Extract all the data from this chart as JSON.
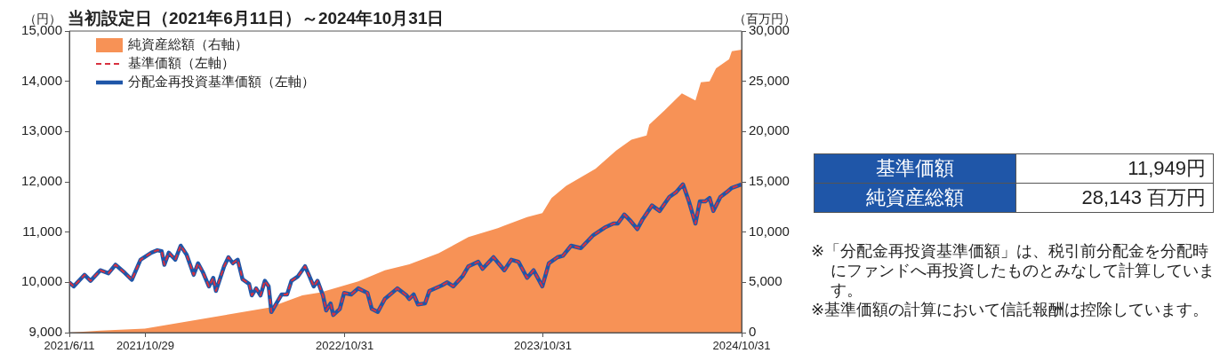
{
  "chart_data": {
    "type": "line",
    "title": "当初設定日（2021年6月11日）～2024年10月31日",
    "ylabel": "（円）",
    "y2label": "（百万円）",
    "xlim": [
      "2021-06-11",
      "2024-10-31"
    ],
    "xticks": [
      {
        "value": "2021-06-11",
        "label": "2021/6/11"
      },
      {
        "value": "2021-10-29",
        "label": "2021/10/29"
      },
      {
        "value": "2022-10-31",
        "label": "2022/10/31"
      },
      {
        "value": "2023-10-31",
        "label": "2023/10/31"
      },
      {
        "value": "2024-10-31",
        "label": "2024/10/31"
      }
    ],
    "ylim": [
      9000,
      15000
    ],
    "yticks": [
      {
        "value": 9000,
        "label": "9,000"
      },
      {
        "value": 10000,
        "label": "10,000"
      },
      {
        "value": 11000,
        "label": "11,000"
      },
      {
        "value": 12000,
        "label": "12,000"
      },
      {
        "value": 13000,
        "label": "13,000"
      },
      {
        "value": 14000,
        "label": "14,000"
      },
      {
        "value": 15000,
        "label": "15,000"
      }
    ],
    "y2lim": [
      0,
      30000
    ],
    "y2ticks": [
      0,
      {
        "value": 5000,
        "label": "5,000"
      },
      {
        "value": 10000,
        "label": "10,000"
      },
      {
        "value": 15000,
        "label": "15,000"
      },
      {
        "value": 20000,
        "label": "20,000"
      },
      {
        "value": 25000,
        "label": "25,000"
      },
      {
        "value": 30000,
        "label": "30,000"
      }
    ],
    "grid": false,
    "legend": "top left",
    "series": [
      {
        "name": "純資産総額（右軸）",
        "type": "area",
        "axis": "y2",
        "color": "#f79256",
        "x": [
          "2021-06-11",
          "2021-08-07",
          "2021-10-28",
          "2022-02-26",
          "2022-06-14",
          "2022-08-14",
          "2022-09-16",
          "2022-11-25",
          "2023-01-13",
          "2023-02-27",
          "2023-04-22",
          "2023-06-16",
          "2023-08-09",
          "2023-10-02",
          "2023-10-30",
          "2023-11-16",
          "2023-12-13",
          "2024-02-05",
          "2024-03-14",
          "2024-04-11",
          "2024-05-09",
          "2024-05-14",
          "2024-06-11",
          "2024-07-13",
          "2024-08-07",
          "2024-08-17",
          "2024-09-02",
          "2024-09-14",
          "2024-10-08",
          "2024-10-13",
          "2024-10-31"
        ],
        "values": [
          0,
          200,
          400,
          1500,
          2500,
          3700,
          4000,
          5100,
          6200,
          6800,
          7900,
          9500,
          10400,
          11500,
          11900,
          13400,
          14600,
          16300,
          18100,
          19200,
          19600,
          20700,
          22100,
          23800,
          23100,
          24900,
          25000,
          26300,
          27200,
          28000,
          28143
        ]
      },
      {
        "name": "基準価額（左軸）",
        "type": "line",
        "line_style": "dashed",
        "color": "#d8313f",
        "x": [
          "2021-06-11",
          "2021-06-19",
          "2021-07-09",
          "2021-07-20",
          "2021-08-07",
          "2021-08-22",
          "2021-09-04",
          "2021-09-21",
          "2021-10-04",
          "2021-10-20",
          "2021-11-09",
          "2021-11-20",
          "2021-11-28",
          "2021-12-03",
          "2021-12-11",
          "2021-12-23",
          "2022-01-02",
          "2022-01-13",
          "2022-01-26",
          "2022-02-03",
          "2022-02-12",
          "2022-02-23",
          "2022-03-03",
          "2022-03-08",
          "2022-03-23",
          "2022-03-31",
          "2022-04-08",
          "2022-04-17",
          "2022-04-26",
          "2022-05-08",
          "2022-05-13",
          "2022-05-21",
          "2022-05-29",
          "2022-06-06",
          "2022-06-13",
          "2022-06-18",
          "2022-06-26",
          "2022-07-07",
          "2022-07-17",
          "2022-07-25",
          "2022-08-06",
          "2022-08-19",
          "2022-08-26",
          "2022-09-04",
          "2022-09-11",
          "2022-09-21",
          "2022-09-27",
          "2022-10-05",
          "2022-10-10",
          "2022-10-22",
          "2022-10-30",
          "2022-11-12",
          "2022-11-25",
          "2022-12-12",
          "2022-12-20",
          "2022-12-31",
          "2023-01-13",
          "2023-02-05",
          "2023-02-22",
          "2023-02-27",
          "2023-03-07",
          "2023-03-15",
          "2023-03-28",
          "2023-04-05",
          "2023-04-28",
          "2023-05-08",
          "2023-05-19",
          "2023-06-05",
          "2023-06-16",
          "2023-07-04",
          "2023-07-12",
          "2023-08-01",
          "2023-08-21",
          "2023-09-03",
          "2023-09-16",
          "2023-10-02",
          "2023-10-14",
          "2023-10-30",
          "2023-11-11",
          "2023-11-27",
          "2023-12-07",
          "2023-12-22",
          "2024-01-09",
          "2024-02-01",
          "2024-02-22",
          "2024-03-09",
          "2024-03-17",
          "2024-03-29",
          "2024-04-08",
          "2024-04-22",
          "2024-05-02",
          "2024-05-19",
          "2024-06-02",
          "2024-06-20",
          "2024-07-02",
          "2024-07-15",
          "2024-07-26",
          "2024-08-07",
          "2024-08-15",
          "2024-08-25",
          "2024-09-02",
          "2024-09-09",
          "2024-09-22",
          "2024-10-03",
          "2024-10-13",
          "2024-10-31"
        ],
        "values": [
          10000,
          9920,
          10150,
          10030,
          10240,
          10180,
          10350,
          10190,
          10050,
          10450,
          10590,
          10640,
          10620,
          10350,
          10590,
          10450,
          10730,
          10550,
          10150,
          10380,
          10200,
          9920,
          10090,
          9830,
          10320,
          10500,
          10380,
          10450,
          10060,
          9970,
          9740,
          9880,
          9740,
          10030,
          9920,
          9410,
          9560,
          9760,
          9760,
          10030,
          10120,
          10320,
          10150,
          9920,
          10030,
          9740,
          9440,
          9580,
          9350,
          9470,
          9790,
          9760,
          9880,
          9790,
          9470,
          9410,
          9670,
          9880,
          9740,
          9670,
          9760,
          9560,
          9580,
          9830,
          9940,
          10000,
          9920,
          10120,
          10320,
          10410,
          10270,
          10500,
          10240,
          10450,
          10410,
          10090,
          10240,
          9920,
          10380,
          10500,
          10530,
          10730,
          10680,
          10940,
          11090,
          11170,
          11170,
          11350,
          11240,
          11060,
          11260,
          11530,
          11420,
          11700,
          11790,
          11950,
          11610,
          11170,
          11610,
          11610,
          11680,
          11420,
          11700,
          11790,
          11880,
          11949
        ]
      },
      {
        "name": "分配金再投資基準価額（左軸）",
        "type": "line",
        "line_style": "solid",
        "color": "#1f56a8",
        "x": [
          "2021-06-11",
          "2021-06-19",
          "2021-07-09",
          "2021-07-20",
          "2021-08-07",
          "2021-08-22",
          "2021-09-04",
          "2021-09-21",
          "2021-10-04",
          "2021-10-20",
          "2021-11-09",
          "2021-11-20",
          "2021-11-28",
          "2021-12-03",
          "2021-12-11",
          "2021-12-23",
          "2022-01-02",
          "2022-01-13",
          "2022-01-26",
          "2022-02-03",
          "2022-02-12",
          "2022-02-23",
          "2022-03-03",
          "2022-03-08",
          "2022-03-23",
          "2022-03-31",
          "2022-04-08",
          "2022-04-17",
          "2022-04-26",
          "2022-05-08",
          "2022-05-13",
          "2022-05-21",
          "2022-05-29",
          "2022-06-06",
          "2022-06-13",
          "2022-06-18",
          "2022-06-26",
          "2022-07-07",
          "2022-07-17",
          "2022-07-25",
          "2022-08-06",
          "2022-08-19",
          "2022-08-26",
          "2022-09-04",
          "2022-09-11",
          "2022-09-21",
          "2022-09-27",
          "2022-10-05",
          "2022-10-10",
          "2022-10-22",
          "2022-10-30",
          "2022-11-12",
          "2022-11-25",
          "2022-12-12",
          "2022-12-20",
          "2022-12-31",
          "2023-01-13",
          "2023-02-05",
          "2023-02-22",
          "2023-02-27",
          "2023-03-07",
          "2023-03-15",
          "2023-03-28",
          "2023-04-05",
          "2023-04-28",
          "2023-05-08",
          "2023-05-19",
          "2023-06-05",
          "2023-06-16",
          "2023-07-04",
          "2023-07-12",
          "2023-08-01",
          "2023-08-21",
          "2023-09-03",
          "2023-09-16",
          "2023-10-02",
          "2023-10-14",
          "2023-10-30",
          "2023-11-11",
          "2023-11-27",
          "2023-12-07",
          "2023-12-22",
          "2024-01-09",
          "2024-02-01",
          "2024-02-22",
          "2024-03-09",
          "2024-03-17",
          "2024-03-29",
          "2024-04-08",
          "2024-04-22",
          "2024-05-02",
          "2024-05-19",
          "2024-06-02",
          "2024-06-20",
          "2024-07-02",
          "2024-07-15",
          "2024-07-26",
          "2024-08-07",
          "2024-08-15",
          "2024-08-25",
          "2024-09-02",
          "2024-09-09",
          "2024-09-22",
          "2024-10-03",
          "2024-10-13",
          "2024-10-31"
        ],
        "values": [
          10000,
          9920,
          10150,
          10030,
          10240,
          10180,
          10350,
          10190,
          10050,
          10450,
          10590,
          10640,
          10620,
          10350,
          10590,
          10450,
          10730,
          10550,
          10150,
          10380,
          10200,
          9920,
          10090,
          9830,
          10320,
          10500,
          10380,
          10450,
          10060,
          9970,
          9740,
          9880,
          9740,
          10030,
          9920,
          9410,
          9560,
          9760,
          9760,
          10030,
          10120,
          10320,
          10150,
          9920,
          10030,
          9740,
          9440,
          9580,
          9350,
          9470,
          9790,
          9760,
          9880,
          9790,
          9470,
          9410,
          9670,
          9880,
          9740,
          9670,
          9760,
          9560,
          9580,
          9830,
          9940,
          10000,
          9920,
          10120,
          10320,
          10410,
          10270,
          10500,
          10240,
          10450,
          10410,
          10090,
          10240,
          9920,
          10380,
          10500,
          10530,
          10730,
          10680,
          10940,
          11090,
          11170,
          11170,
          11350,
          11240,
          11060,
          11260,
          11530,
          11420,
          11700,
          11790,
          11950,
          11610,
          11170,
          11610,
          11610,
          11680,
          11420,
          11700,
          11790,
          11880,
          11949
        ]
      }
    ],
    "annotations": [
      "基準価額",
      "11,949円",
      "純資産総額",
      "28,143 百万円",
      "※「分配金再投資基準価額」は、税引前分配金を分配時にファンドへ再投資したものとみなして計算しています。",
      "※基準価額の計算において信託報酬は控除しています。"
    ]
  }
}
